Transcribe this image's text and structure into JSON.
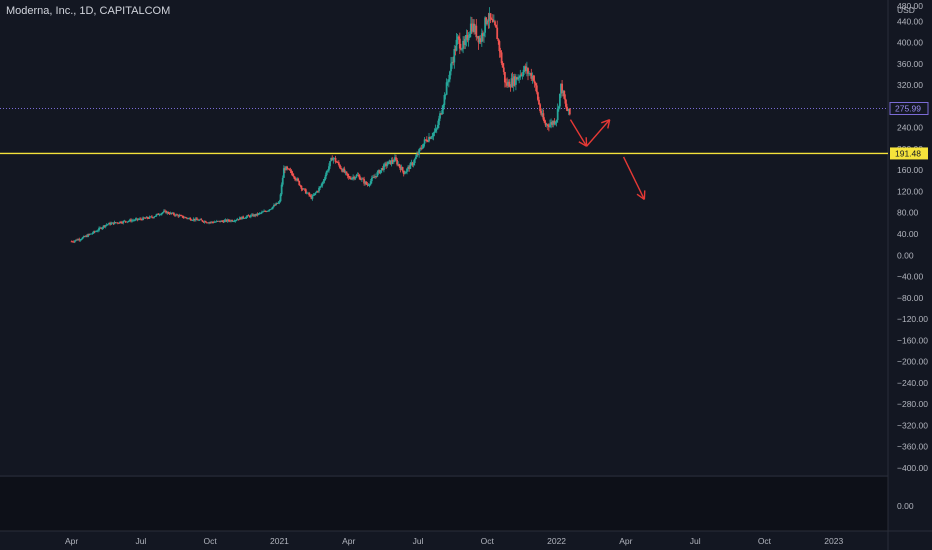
{
  "header": {
    "title": "Moderna, Inc., 1D, CAPITALCOM"
  },
  "colors": {
    "background": "#131722",
    "up": "#26a69a",
    "down": "#ef5350",
    "support_line": "#f5e33b",
    "price_line": "#7b6bd6",
    "arrow": "#e53935",
    "axis_text": "#b2b5be"
  },
  "chart_data": {
    "type": "candlestick",
    "symbol": "Moderna, Inc.",
    "interval": "1D",
    "source": "CAPITALCOM",
    "y_unit": "USD",
    "y_axis_top_label": "480.00",
    "y_ticks": [
      "440.00",
      "400.00",
      "360.00",
      "320.00",
      "280.00",
      "240.00",
      "200.00",
      "160.00",
      "120.00",
      "80.00",
      "40.00",
      "0.00",
      "−40.00",
      "−80.00",
      "−120.00",
      "−160.00",
      "−200.00",
      "−240.00",
      "−280.00",
      "−320.00",
      "−360.00",
      "−400.00"
    ],
    "y_tick_values": [
      440,
      400,
      360,
      320,
      280,
      240,
      200,
      160,
      120,
      80,
      40,
      0,
      -40,
      -80,
      -120,
      -160,
      -200,
      -240,
      -280,
      -320,
      -360,
      -400
    ],
    "ylim": [
      -415,
      480
    ],
    "x_ticks": [
      "Apr",
      "Jul",
      "Oct",
      "2021",
      "Apr",
      "Jul",
      "Oct",
      "2022",
      "Apr",
      "Jul",
      "Oct",
      "2023"
    ],
    "x_tick_months": [
      3,
      6,
      9,
      12,
      15,
      18,
      21,
      24,
      27,
      30,
      33,
      36
    ],
    "xlim": [
      -0.1,
      38.35
    ],
    "current_price_label": "275.99",
    "current_price": 275.99,
    "support_label": "191.48",
    "support_level": 191.48,
    "price_path": [
      [
        3.0,
        26
      ],
      [
        3.5,
        33
      ],
      [
        4.0,
        44
      ],
      [
        4.5,
        58
      ],
      [
        5.0,
        62
      ],
      [
        5.5,
        65
      ],
      [
        6.0,
        68
      ],
      [
        6.5,
        72
      ],
      [
        7.0,
        82
      ],
      [
        7.5,
        76
      ],
      [
        8.0,
        70
      ],
      [
        8.5,
        66
      ],
      [
        9.0,
        62
      ],
      [
        9.5,
        64
      ],
      [
        10.0,
        66
      ],
      [
        10.5,
        72
      ],
      [
        11.0,
        76
      ],
      [
        11.5,
        85
      ],
      [
        12.0,
        100
      ],
      [
        12.2,
        165
      ],
      [
        12.6,
        152
      ],
      [
        13.0,
        125
      ],
      [
        13.4,
        108
      ],
      [
        13.8,
        130
      ],
      [
        14.3,
        185
      ],
      [
        14.6,
        168
      ],
      [
        15.0,
        145
      ],
      [
        15.4,
        150
      ],
      [
        15.8,
        132
      ],
      [
        16.2,
        152
      ],
      [
        16.6,
        170
      ],
      [
        17.0,
        180
      ],
      [
        17.4,
        155
      ],
      [
        17.8,
        175
      ],
      [
        18.3,
        215
      ],
      [
        18.8,
        235
      ],
      [
        19.1,
        290
      ],
      [
        19.4,
        350
      ],
      [
        19.7,
        405
      ],
      [
        20.0,
        390
      ],
      [
        20.3,
        435
      ],
      [
        20.7,
        405
      ],
      [
        21.0,
        450
      ],
      [
        21.4,
        420
      ],
      [
        21.8,
        320
      ],
      [
        22.2,
        330
      ],
      [
        22.6,
        350
      ],
      [
        23.0,
        335
      ],
      [
        23.3,
        270
      ],
      [
        23.5,
        245
      ],
      [
        23.8,
        248
      ],
      [
        24.0,
        258
      ],
      [
        24.2,
        320
      ],
      [
        24.4,
        278
      ],
      [
        24.6,
        262
      ]
    ],
    "arrows": [
      {
        "from": [
          24.6,
          255
        ],
        "to": [
          25.3,
          205
        ]
      },
      {
        "from": [
          25.3,
          205
        ],
        "to": [
          26.3,
          255
        ]
      },
      {
        "from": [
          26.9,
          185
        ],
        "to": [
          27.8,
          105
        ]
      }
    ],
    "grid": false,
    "legend": "none",
    "lower_pane": {
      "tick_label": "0.00",
      "value": 0
    }
  }
}
